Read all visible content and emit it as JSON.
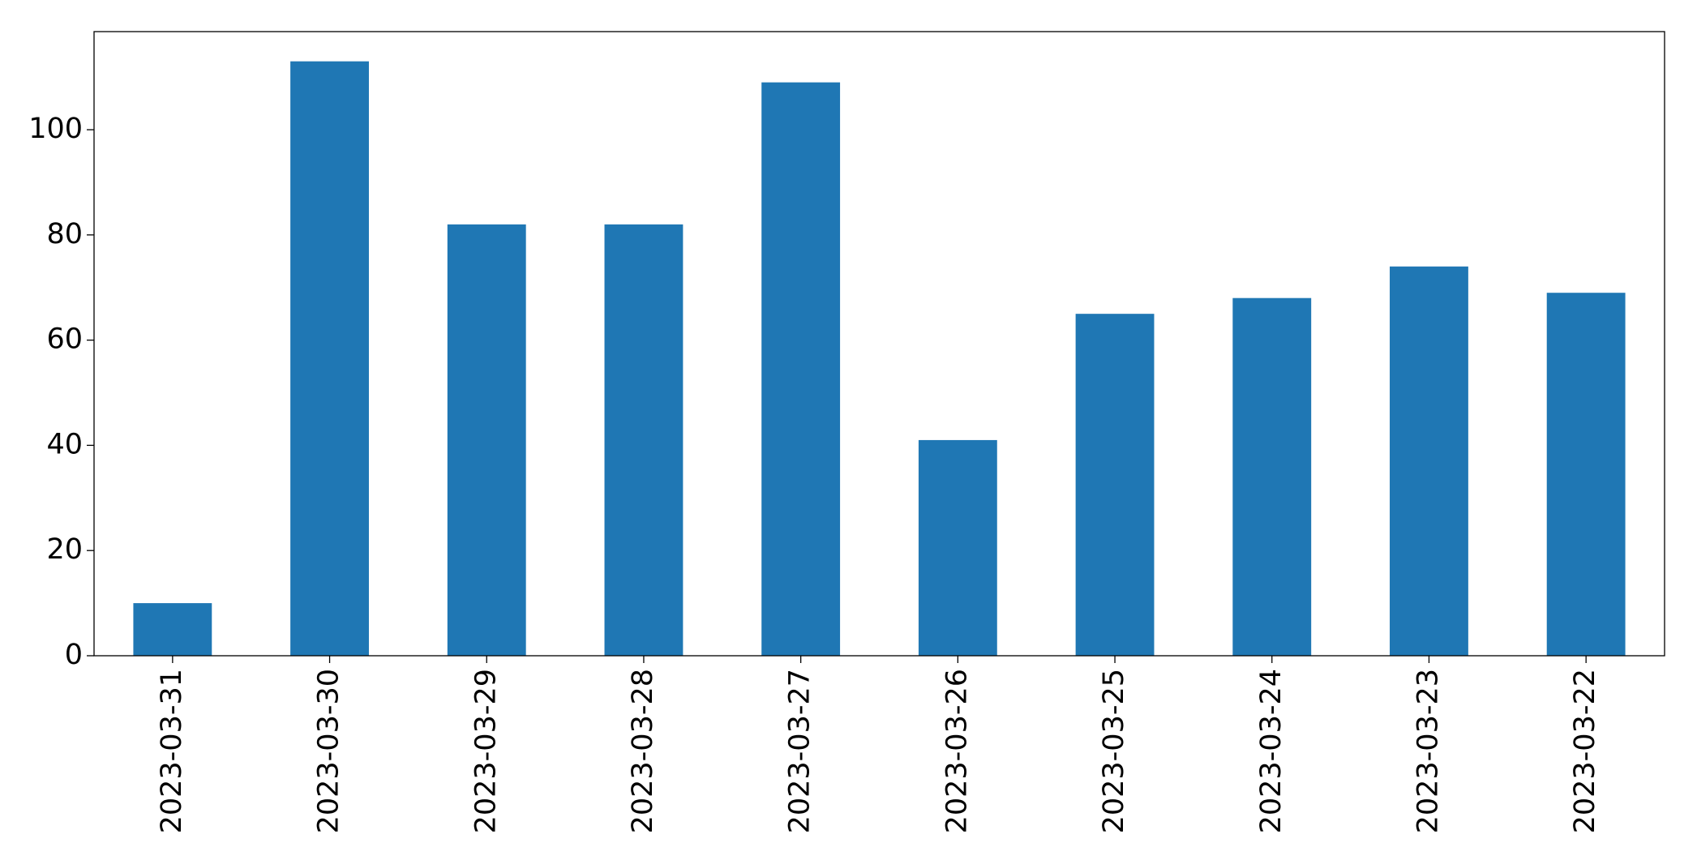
{
  "chart_data": {
    "type": "bar",
    "categories": [
      "2023-03-31",
      "2023-03-30",
      "2023-03-29",
      "2023-03-28",
      "2023-03-27",
      "2023-03-26",
      "2023-03-25",
      "2023-03-24",
      "2023-03-23",
      "2023-03-22"
    ],
    "values": [
      10,
      113,
      82,
      82,
      109,
      41,
      65,
      68,
      74,
      69
    ],
    "color": "#1f77b4",
    "ylim": [
      0,
      118.65
    ],
    "yticks": [
      0,
      20,
      40,
      60,
      80,
      100
    ],
    "grid": false
  }
}
